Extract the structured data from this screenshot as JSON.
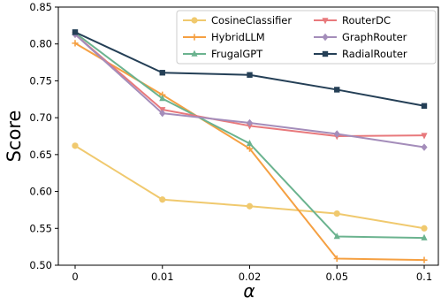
{
  "chart_data": {
    "type": "line",
    "x": [
      "0",
      "0.01",
      "0.02",
      "0.05",
      "0.1"
    ],
    "xlabel": "α",
    "ylabel": "Score",
    "ylim": [
      0.5,
      0.85
    ],
    "yticks": [
      "0.50",
      "0.55",
      "0.60",
      "0.65",
      "0.70",
      "0.75",
      "0.80",
      "0.85"
    ],
    "grid": false,
    "legend_position": "top-right",
    "series": [
      {
        "name": "CosineClassifier",
        "color": "#F0C96E",
        "marker": "circle",
        "values": [
          0.662,
          0.589,
          0.58,
          0.57,
          0.55
        ]
      },
      {
        "name": "HybridLLM",
        "color": "#F5A042",
        "marker": "plus",
        "values": [
          0.801,
          0.731,
          0.658,
          0.509,
          0.507
        ]
      },
      {
        "name": "FrugalGPT",
        "color": "#6BB38F",
        "marker": "triangle-up",
        "values": [
          0.815,
          0.726,
          0.665,
          0.539,
          0.537
        ]
      },
      {
        "name": "RouterDC",
        "color": "#E8797C",
        "marker": "triangle-down",
        "values": [
          0.813,
          0.711,
          0.689,
          0.675,
          0.676
        ]
      },
      {
        "name": "GraphRouter",
        "color": "#A48DBA",
        "marker": "diamond",
        "values": [
          0.813,
          0.706,
          0.693,
          0.678,
          0.66
        ]
      },
      {
        "name": "RadialRouter",
        "color": "#243F56",
        "marker": "square",
        "values": [
          0.816,
          0.761,
          0.758,
          0.738,
          0.716
        ]
      }
    ]
  }
}
